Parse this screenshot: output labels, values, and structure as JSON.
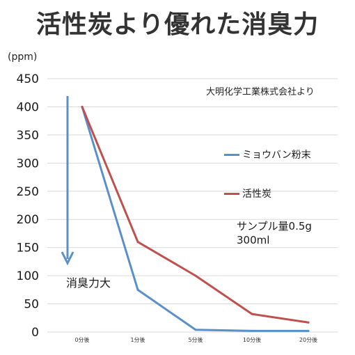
{
  "title": "活性炭より優れた消臭力",
  "unit_label": "(ppm)",
  "source": "大明化学工業株式会社より",
  "note": [
    "サンプル量0.5g",
    "300ml"
  ],
  "arrow_label": "消臭力大",
  "colors": {
    "series_blue": "#5b8fc9",
    "series_red": "#c0504d",
    "arrow": "#5b8fc9",
    "grid": "#d9d9d9"
  },
  "chart_data": {
    "type": "line",
    "title": "活性炭より優れた消臭力",
    "ylabel": "(ppm)",
    "xlabel": "",
    "categories": [
      "0分後",
      "1分後",
      "5分後",
      "10分後",
      "20分後"
    ],
    "ylim": [
      0,
      450
    ],
    "yticks": [
      0,
      50,
      100,
      150,
      200,
      250,
      300,
      350,
      400,
      450
    ],
    "grid": true,
    "legend_position": "right",
    "series": [
      {
        "name": "ミョウバン粉末",
        "color": "#5b8fc9",
        "values": [
          400,
          75,
          4,
          2,
          2
        ]
      },
      {
        "name": "活性炭",
        "color": "#c0504d",
        "values": [
          400,
          160,
          100,
          32,
          17
        ]
      }
    ]
  }
}
